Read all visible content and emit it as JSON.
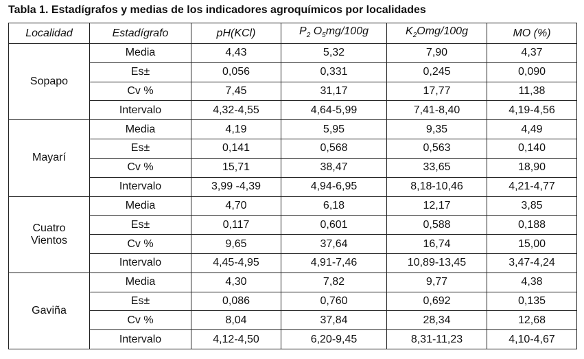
{
  "caption": "Tabla 1. Estadígrafos y medias de los indicadores agroquímicos por localidades",
  "headers": {
    "localidad": "Localidad",
    "estadigrafo": "Estadígrafo",
    "ph": "pH(KCl)",
    "p2o5": {
      "a": "P",
      "a_sub": "2",
      "b": "O",
      "b_sub": "5",
      "rest": "mg/100g"
    },
    "k2o": {
      "a": "K",
      "a_sub": "2",
      "b": "O",
      "rest": "mg/100g"
    },
    "mo": "MO (%)"
  },
  "groups": [
    {
      "locality": [
        "Sopapo"
      ],
      "rows": [
        {
          "stat": "Media",
          "ph": "4,43",
          "p2o5": "5,32",
          "k2o": "7,90",
          "mo": "4,37"
        },
        {
          "stat": "Es±",
          "ph": "0,056",
          "p2o5": "0,331",
          "k2o": "0,245",
          "mo": "0,090"
        },
        {
          "stat": "Cv %",
          "ph": "7,45",
          "p2o5": "31,17",
          "k2o": "17,77",
          "mo": "11,38"
        },
        {
          "stat": "Intervalo",
          "ph": "4,32-4,55",
          "p2o5": "4,64-5,99",
          "k2o": "7,41-8,40",
          "mo": "4,19-4,56"
        }
      ]
    },
    {
      "locality": [
        "Mayarí"
      ],
      "rows": [
        {
          "stat": "Media",
          "ph": "4,19",
          "p2o5": "5,95",
          "k2o": "9,35",
          "mo": "4,49"
        },
        {
          "stat": "Es±",
          "ph": "0,141",
          "p2o5": "0,568",
          "k2o": "0,563",
          "mo": "0,140"
        },
        {
          "stat": "Cv %",
          "ph": "15,71",
          "p2o5": "38,47",
          "k2o": "33,65",
          "mo": "18,90"
        },
        {
          "stat": "Intervalo",
          "ph": "3,99 -4,39",
          "p2o5": "4,94-6,95",
          "k2o": "8,18-10,46",
          "mo": "4,21-4,77"
        }
      ]
    },
    {
      "locality": [
        "Cuatro",
        "Vientos"
      ],
      "rows": [
        {
          "stat": "Media",
          "ph": "4,70",
          "p2o5": "6,18",
          "k2o": "12,17",
          "mo": "3,85"
        },
        {
          "stat": "Es±",
          "ph": "0,117",
          "p2o5": "0,601",
          "k2o": "0,588",
          "mo": "0,188"
        },
        {
          "stat": "Cv %",
          "ph": "9,65",
          "p2o5": "37,64",
          "k2o": "16,74",
          "mo": "15,00"
        },
        {
          "stat": "Intervalo",
          "ph": "4,45-4,95",
          "p2o5": "4,91-7,46",
          "k2o": "10,89-13,45",
          "mo": "3,47-4,24"
        }
      ]
    },
    {
      "locality": [
        "Gaviña"
      ],
      "rows": [
        {
          "stat": "Media",
          "ph": "4,30",
          "p2o5": "7,82",
          "k2o": "9,77",
          "mo": "4,38"
        },
        {
          "stat": "Es±",
          "ph": "0,086",
          "p2o5": "0,760",
          "k2o": "0,692",
          "mo": "0,135"
        },
        {
          "stat": "Cv %",
          "ph": "8,04",
          "p2o5": "37,84",
          "k2o": "28,34",
          "mo": "12,68"
        },
        {
          "stat": "Intervalo",
          "ph": "4,12-4,50",
          "p2o5": "6,20-9,45",
          "k2o": "8,31-11,23",
          "mo": "4,10-4,67"
        }
      ]
    }
  ]
}
